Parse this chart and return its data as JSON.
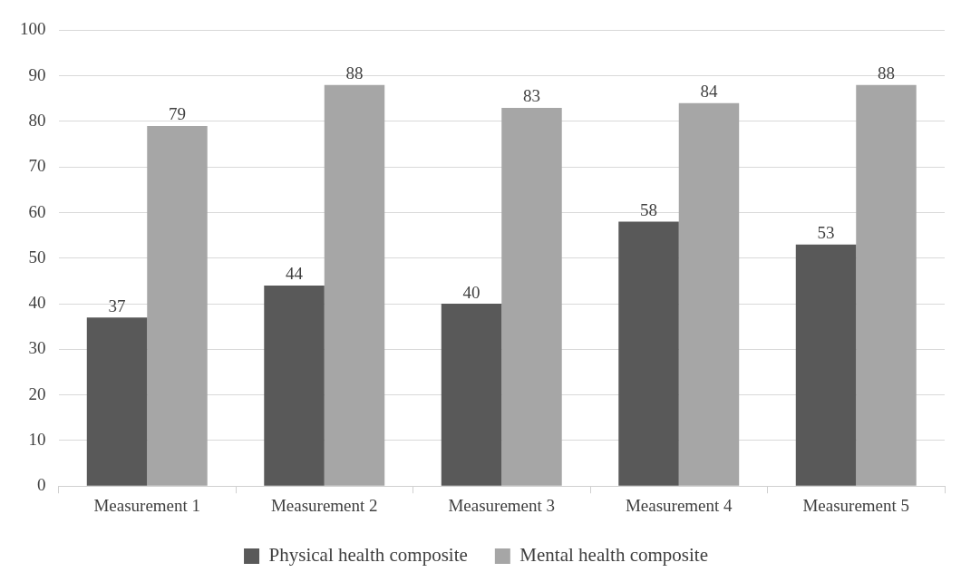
{
  "chart_data": {
    "type": "bar",
    "categories": [
      "Measurement 1",
      "Measurement 2",
      "Measurement 3",
      "Measurement 4",
      "Measurement 5"
    ],
    "series": [
      {
        "name": "Physical health composite",
        "color": "#595959",
        "values": [
          37,
          44,
          40,
          58,
          53
        ]
      },
      {
        "name": "Mental health composite",
        "color": "#a6a6a6",
        "values": [
          79,
          88,
          83,
          84,
          88
        ]
      }
    ],
    "ylim": [
      0,
      100
    ],
    "yticks": [
      0,
      10,
      20,
      30,
      40,
      50,
      60,
      70,
      80,
      90,
      100
    ],
    "grid": "y",
    "legend": "bottom",
    "data_labels": true
  }
}
